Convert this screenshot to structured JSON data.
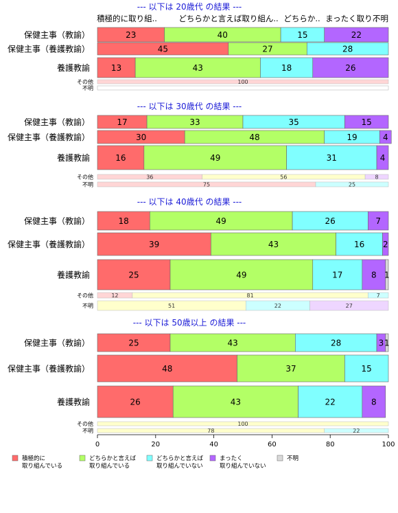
{
  "chart_data": {
    "type": "bar",
    "stacked": true,
    "orientation": "horizontal",
    "xlim": [
      0,
      100
    ],
    "xticks": [
      "0",
      "20",
      "40",
      "60",
      "80",
      "100"
    ],
    "column_headers": [
      "積極的に取り組..",
      "どちらかと言えば取り組ん..",
      "どちらか..",
      "まったく取り..",
      "不明"
    ],
    "legend": {
      "placement": "bottom",
      "entries": [
        {
          "label_lines": [
            "積極的に",
            "取り組んでいる"
          ],
          "color": "#ff6b6b"
        },
        {
          "label_lines": [
            "どちらかと言えば",
            "取り組んでいる"
          ],
          "color": "#b3ff66"
        },
        {
          "label_lines": [
            "どちらかと言えば",
            "取り組んでいない"
          ],
          "color": "#80ffff"
        },
        {
          "label_lines": [
            "まったく",
            "取り組んでいない"
          ],
          "color": "#b366ff"
        },
        {
          "label_lines": [
            "不明"
          ],
          "color": "#d9d9d9"
        }
      ]
    },
    "panels": [
      {
        "title": "--- 以下は 20歳代 の結果 ---",
        "rows": [
          {
            "label": "保健主事（教諭）",
            "values": [
              23,
              40,
              15,
              22,
              0
            ]
          },
          {
            "label": "保健主事（養護教諭）",
            "values": [
              45,
              27,
              28,
              0,
              0
            ]
          },
          {
            "label": "養護教諭",
            "values": [
              13,
              43,
              18,
              26,
              0
            ]
          },
          {
            "label": "その他",
            "values": [
              100,
              0,
              0,
              0,
              0
            ]
          },
          {
            "label": "不明",
            "values": [
              0,
              0,
              0,
              0,
              0
            ]
          }
        ]
      },
      {
        "title": "--- 以下は 30歳代 の結果 ---",
        "rows": [
          {
            "label": "保健主事（教諭）",
            "values": [
              17,
              33,
              35,
              15,
              0
            ]
          },
          {
            "label": "保健主事（養護教諭）",
            "values": [
              30,
              48,
              19,
              4,
              0
            ]
          },
          {
            "label": "養護教諭",
            "values": [
              16,
              49,
              31,
              4,
              0
            ]
          },
          {
            "label": "その他",
            "values": [
              36,
              56,
              0,
              8,
              0
            ]
          },
          {
            "label": "不明",
            "values": [
              75,
              0,
              25,
              0,
              0
            ]
          }
        ]
      },
      {
        "title": "--- 以下は 40歳代 の結果 ---",
        "rows": [
          {
            "label": "保健主事（教諭）",
            "values": [
              18,
              49,
              26,
              7,
              0
            ]
          },
          {
            "label": "保健主事（養護教諭）",
            "values": [
              39,
              43,
              16,
              2,
              0
            ]
          },
          {
            "label": "養護教諭",
            "values": [
              25,
              49,
              17,
              8,
              1
            ]
          },
          {
            "label": "その他",
            "values": [
              12,
              81,
              7,
              0,
              0
            ]
          },
          {
            "label": "不明",
            "values": [
              0,
              51,
              22,
              27,
              0
            ]
          }
        ]
      },
      {
        "title": "--- 以下は 50歳以上 の結果 ---",
        "rows": [
          {
            "label": "保健主事（教諭）",
            "values": [
              25,
              43,
              28,
              3,
              1
            ]
          },
          {
            "label": "保健主事（養護教諭）",
            "values": [
              48,
              37,
              15,
              0,
              0
            ]
          },
          {
            "label": "養護教諭",
            "values": [
              26,
              43,
              22,
              8,
              0
            ]
          },
          {
            "label": "その他",
            "values": [
              0,
              100,
              0,
              0,
              0
            ]
          },
          {
            "label": "不明",
            "values": [
              0,
              78,
              22,
              0,
              0
            ]
          }
        ]
      }
    ]
  }
}
